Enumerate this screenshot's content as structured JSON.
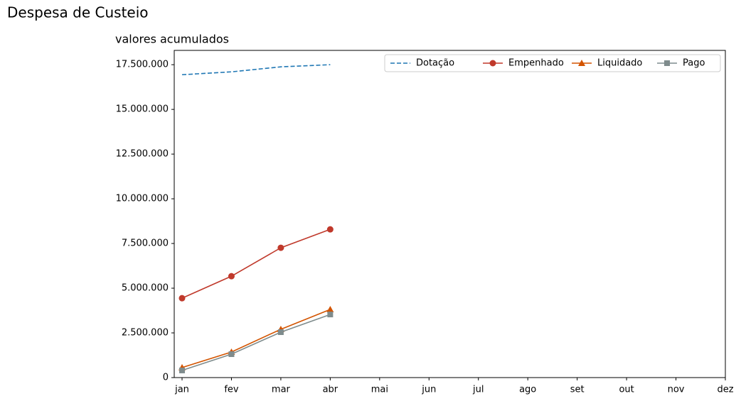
{
  "chart_data": {
    "type": "line",
    "title": "Despesa de Custeio",
    "subtitle": "valores acumulados",
    "categories": [
      "jan",
      "fev",
      "mar",
      "abr",
      "mai",
      "jun",
      "jul",
      "ago",
      "set",
      "out",
      "nov",
      "dez"
    ],
    "series": [
      {
        "name": "Dotação",
        "color": "#1f77b4",
        "linestyle": "dashed",
        "marker": "none",
        "values": [
          16940000,
          17100000,
          17380000,
          17500000,
          null,
          null,
          null,
          null,
          null,
          null,
          null,
          null
        ]
      },
      {
        "name": "Empenhado",
        "color": "#c0392b",
        "linestyle": "solid",
        "marker": "circle",
        "values": [
          4440000,
          5670000,
          7260000,
          8290000,
          null,
          null,
          null,
          null,
          null,
          null,
          null,
          null
        ]
      },
      {
        "name": "Liquidado",
        "color": "#d35400",
        "linestyle": "solid",
        "marker": "triangle",
        "values": [
          560000,
          1430000,
          2700000,
          3810000,
          null,
          null,
          null,
          null,
          null,
          null,
          null,
          null
        ]
      },
      {
        "name": "Pago",
        "color": "#7f8c8d",
        "linestyle": "solid",
        "marker": "square",
        "values": [
          400000,
          1310000,
          2540000,
          3530000,
          null,
          null,
          null,
          null,
          null,
          null,
          null,
          null
        ]
      }
    ],
    "ylim": [
      0,
      18300000
    ],
    "yticks": [
      0,
      {
        "value": 2500000,
        "label": "2.500.000"
      },
      {
        "value": 5000000,
        "label": "5.000.000"
      },
      {
        "value": 7500000,
        "label": "7.500.000"
      },
      {
        "value": 10000000,
        "label": "10.000.000"
      },
      {
        "value": 12500000,
        "label": "12.500.000"
      },
      {
        "value": 15000000,
        "label": "15.000.000"
      },
      {
        "value": 17500000,
        "label": "17.500.000"
      }
    ],
    "legend": "upper right",
    "grid": false
  }
}
